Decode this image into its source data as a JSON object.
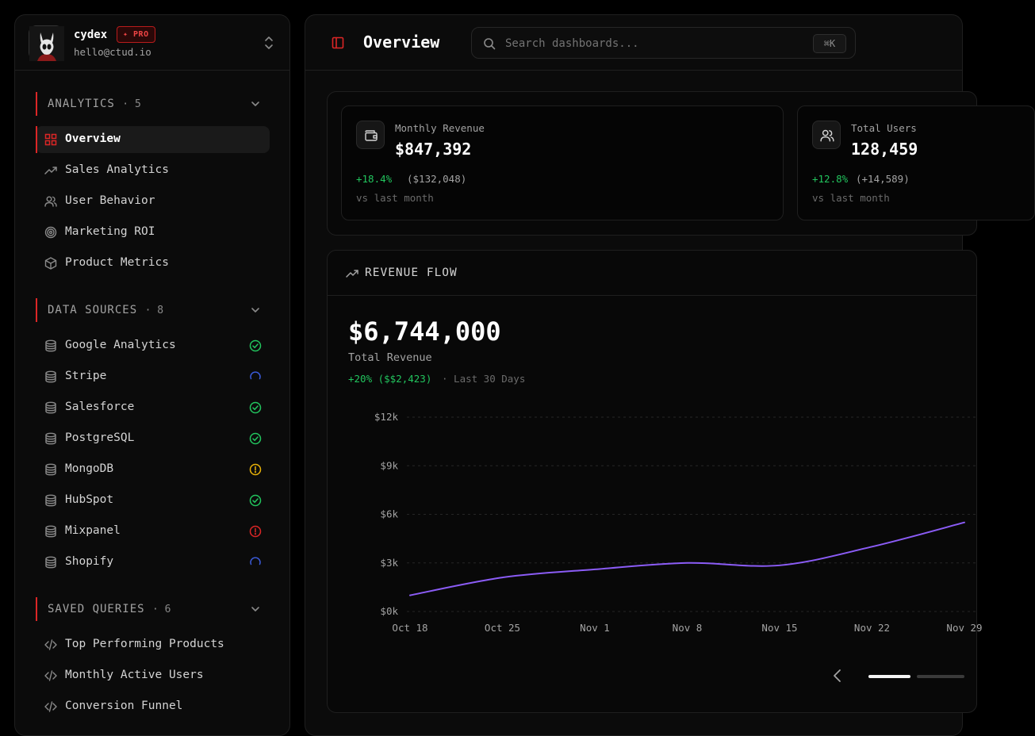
{
  "user": {
    "name": "cydex",
    "badge": "✦ PRO",
    "email": "hello@ctud.io"
  },
  "sidebar": {
    "sections": [
      {
        "title": "ANALYTICS",
        "count": "· 5",
        "items": [
          {
            "label": "Overview",
            "icon": "grid-icon",
            "active": true
          },
          {
            "label": "Sales Analytics",
            "icon": "trending-up-icon"
          },
          {
            "label": "User Behavior",
            "icon": "users-icon"
          },
          {
            "label": "Marketing ROI",
            "icon": "target-icon"
          },
          {
            "label": "Product Metrics",
            "icon": "box-icon"
          }
        ]
      },
      {
        "title": "DATA SOURCES",
        "count": "· 8",
        "items": [
          {
            "label": "Google Analytics",
            "icon": "database-icon",
            "status": "connected"
          },
          {
            "label": "Stripe",
            "icon": "database-icon",
            "status": "syncing"
          },
          {
            "label": "Salesforce",
            "icon": "database-icon",
            "status": "connected"
          },
          {
            "label": "PostgreSQL",
            "icon": "database-icon",
            "status": "connected"
          },
          {
            "label": "MongoDB",
            "icon": "database-icon",
            "status": "warning"
          },
          {
            "label": "HubSpot",
            "icon": "database-icon",
            "status": "connected"
          },
          {
            "label": "Mixpanel",
            "icon": "database-icon",
            "status": "error"
          },
          {
            "label": "Shopify",
            "icon": "database-icon",
            "status": "syncing"
          }
        ]
      },
      {
        "title": "SAVED QUERIES",
        "count": "· 6",
        "items": [
          {
            "label": "Top Performing Products",
            "icon": "code-icon"
          },
          {
            "label": "Monthly Active Users",
            "icon": "code-icon"
          },
          {
            "label": "Conversion Funnel",
            "icon": "code-icon"
          }
        ]
      }
    ]
  },
  "header": {
    "title": "Overview",
    "search_placeholder": "Search dashboards...",
    "shortcut": "⌘K"
  },
  "stats": [
    {
      "label": "Monthly Revenue",
      "value": "$847,392",
      "change": "+18.4%",
      "delta": "($132,048)",
      "compare": "vs last month",
      "icon": "wallet-icon"
    },
    {
      "label": "Total Users",
      "value": "128,459",
      "change": "+12.8%",
      "delta": "(+14,589)",
      "compare": "vs last month",
      "icon": "users-icon"
    }
  ],
  "revenue": {
    "title": "REVENUE FLOW",
    "total": "$6,744,000",
    "total_label": "Total Revenue",
    "change": "+20% ($$2,423)",
    "period": "· Last 30 Days"
  },
  "colors": {
    "accent": "#dc2626",
    "positive": "#22c55e",
    "line": "#8b5cf6",
    "connected": "#22c55e",
    "syncing": "#3b5bdb",
    "warning": "#eab308",
    "error": "#dc2626"
  },
  "chart_data": {
    "type": "line",
    "title": "REVENUE FLOW",
    "categories": [
      "Oct 18",
      "Oct 25",
      "Nov 1",
      "Nov 8",
      "Nov 15",
      "Nov 22",
      "Nov 29"
    ],
    "y_tick_labels": [
      "$0k",
      "$3k",
      "$6k",
      "$9k",
      "$12k"
    ],
    "y_ticks": [
      0,
      3000,
      6000,
      9000,
      12000
    ],
    "ylim": [
      0,
      12000
    ],
    "series": [
      {
        "name": "Revenue",
        "values": [
          1000,
          2100,
          2600,
          3000,
          2850,
          4000,
          5500
        ]
      }
    ],
    "grid": true
  },
  "carousel": {
    "active_index": 0,
    "count": 2
  }
}
